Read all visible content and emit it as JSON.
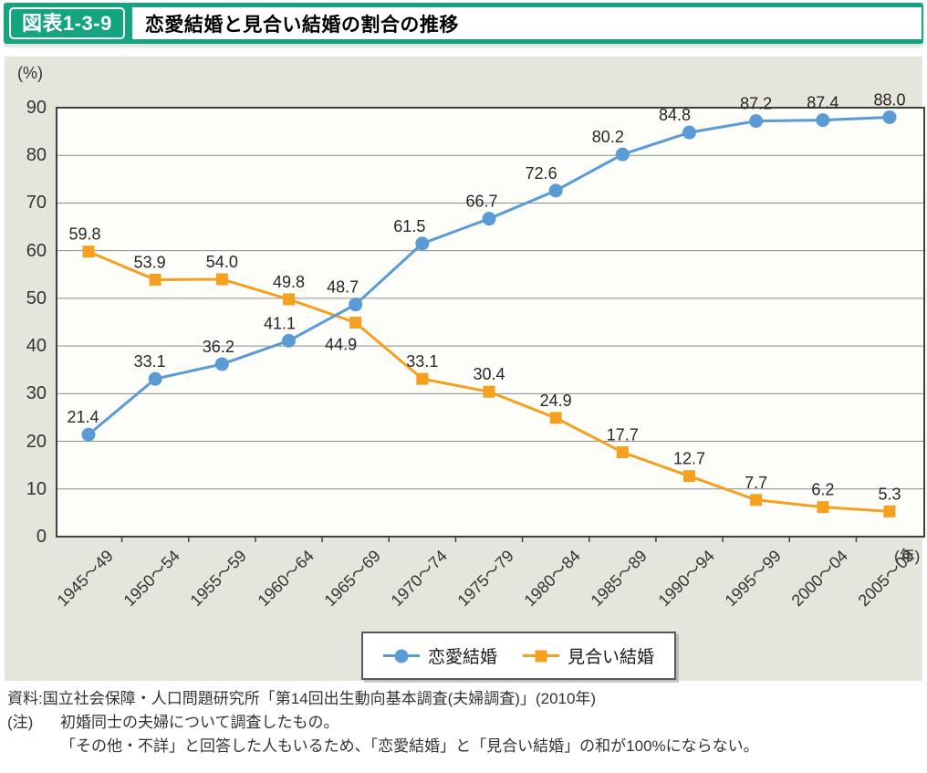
{
  "header": {
    "badge": "図表1-3-9",
    "title": "恋愛結婚と見合い結婚の割合の推移"
  },
  "colors": {
    "header_green": "#14a580",
    "panel_bg": "#e6e5dc",
    "plot_bg": "#fdfdfa",
    "grid": "#8c8c8c",
    "plot_border": "#3f3f3f",
    "love_blue": "#5b9bd5",
    "miai_orange": "#f5a01f",
    "label_text": "#262626"
  },
  "axis": {
    "unit_label": "(%)",
    "year_label": "(年)",
    "y_ticks": [
      0,
      10,
      20,
      30,
      40,
      50,
      60,
      70,
      80,
      90
    ],
    "y_max": 90
  },
  "footer": {
    "source": "資料:国立社会保障・人口問題研究所「第14回出生動向基本調査(夫婦調査)」(2010年)",
    "note_label": "(注)",
    "note1": "初婚同士の夫婦について調査したもの。",
    "note2": "「その他・不詳」と回答した人もいるため、「恋愛結婚」と「見合い結婚」の和が100%にならない。"
  },
  "chart_data": {
    "type": "line",
    "title": "恋愛結婚と見合い結婚の割合の推移",
    "xlabel": "(年)",
    "ylabel": "(%)",
    "ylim": [
      0,
      90
    ],
    "grid": true,
    "legend_position": "bottom",
    "categories": [
      "1945〜49",
      "1950〜54",
      "1955〜59",
      "1960〜64",
      "1965〜69",
      "1970〜74",
      "1975〜79",
      "1980〜84",
      "1985〜89",
      "1990〜94",
      "1995〜99",
      "2000〜04",
      "2005〜09"
    ],
    "series": [
      {
        "name": "恋愛結婚",
        "marker": "circle",
        "color": "#5b9bd5",
        "values": [
          21.4,
          33.1,
          36.2,
          41.1,
          48.7,
          61.5,
          66.7,
          72.6,
          80.2,
          84.8,
          87.2,
          87.4,
          88.0
        ],
        "value_labels": [
          "21.4",
          "33.1",
          "36.2",
          "41.1",
          "48.7",
          "61.5",
          "66.7",
          "72.6",
          "80.2",
          "84.8",
          "87.2",
          "87.4",
          "88.0"
        ],
        "label_dx": [
          -6,
          -6,
          -4,
          -10,
          -14,
          -14,
          -8,
          -16,
          -16,
          -16,
          0,
          0,
          0
        ],
        "label_below_indices": []
      },
      {
        "name": "見合い結婚",
        "marker": "square",
        "color": "#f5a01f",
        "values": [
          59.8,
          53.9,
          54.0,
          49.8,
          44.9,
          33.1,
          30.4,
          24.9,
          17.7,
          12.7,
          7.7,
          6.2,
          5.3
        ],
        "value_labels": [
          "59.8",
          "53.9",
          "54.0",
          "49.8",
          "44.9",
          "33.1",
          "30.4",
          "24.9",
          "17.7",
          "12.7",
          "7.7",
          "6.2",
          "5.3"
        ],
        "label_dx": [
          -4,
          -6,
          0,
          0,
          -16,
          0,
          0,
          0,
          0,
          0,
          0,
          0,
          0
        ],
        "label_below_indices": [
          4
        ]
      }
    ]
  }
}
